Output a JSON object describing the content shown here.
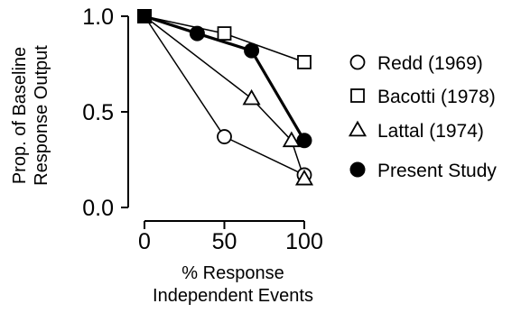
{
  "chart_data": {
    "type": "line",
    "title": "",
    "xlabel": [
      "% Response",
      "Independent Events"
    ],
    "ylabel": [
      "Prop. of Baseline",
      "Response Output"
    ],
    "xlim": [
      0,
      100
    ],
    "ylim": [
      0,
      1
    ],
    "xticks": [
      0,
      50,
      100
    ],
    "xtick_labels": [
      "0",
      "50",
      "100"
    ],
    "yticks": [
      0,
      0.5,
      1.0
    ],
    "ytick_labels": [
      "0.0",
      "0.5",
      "1.0"
    ],
    "grid": false,
    "legend_position": "right",
    "series": [
      {
        "name": "Redd (1969)",
        "marker": "open-circle",
        "line": "thin",
        "x": [
          0,
          50,
          100
        ],
        "y": [
          1.0,
          0.37,
          0.17
        ]
      },
      {
        "name": "Bacotti (1978)",
        "marker": "open-square",
        "line": "thin",
        "x": [
          0,
          50,
          100
        ],
        "y": [
          1.0,
          0.91,
          0.76
        ]
      },
      {
        "name": "Lattal (1974)",
        "marker": "open-triangle",
        "line": "thin",
        "x": [
          0,
          67,
          92,
          100
        ],
        "y": [
          1.0,
          0.57,
          0.35,
          0.15
        ]
      },
      {
        "name": "Present Study",
        "marker": "filled-circle",
        "line": "thick",
        "x": [
          0,
          33,
          67,
          100
        ],
        "y": [
          1.0,
          0.91,
          0.82,
          0.35
        ]
      }
    ]
  }
}
